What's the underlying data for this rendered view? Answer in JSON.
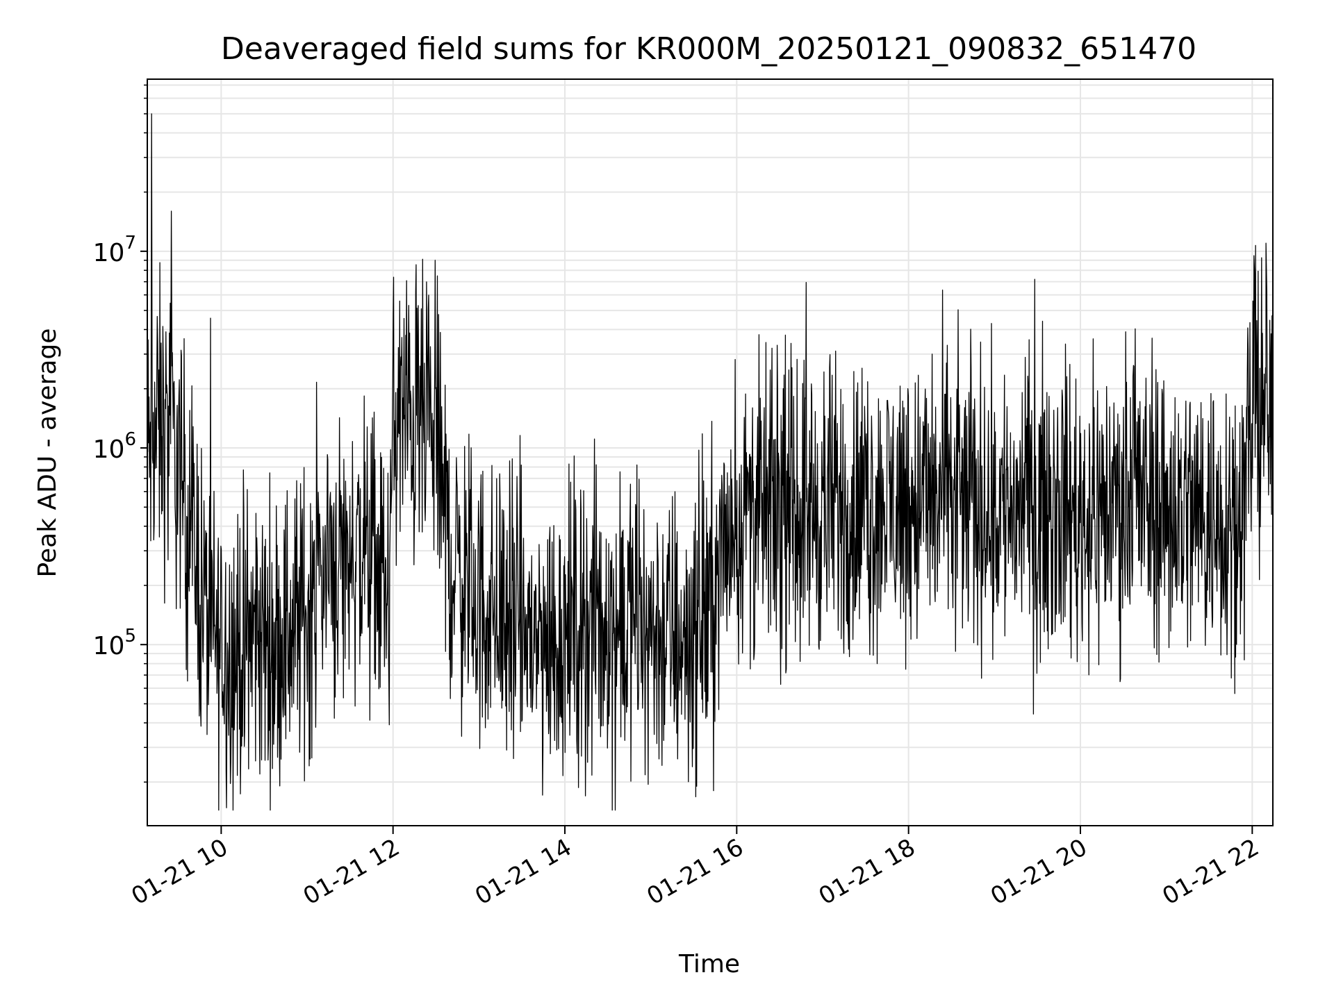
{
  "chart_data": {
    "type": "line",
    "title": "Deaveraged field sums for KR000M_20250121_090832_651470",
    "xlabel": "Time",
    "ylabel": "Peak ADU - average",
    "yscale": "log",
    "grid": true,
    "x_unit": "hours (01-21)",
    "xlim": [
      9.14,
      22.24
    ],
    "ylim": [
      12000,
      75000000
    ],
    "x_ticks": [
      {
        "value": 10,
        "label": "01-21 10"
      },
      {
        "value": 12,
        "label": "01-21 12"
      },
      {
        "value": 14,
        "label": "01-21 14"
      },
      {
        "value": 16,
        "label": "01-21 16"
      },
      {
        "value": 18,
        "label": "01-21 18"
      },
      {
        "value": 20,
        "label": "01-21 20"
      },
      {
        "value": 22,
        "label": "01-21 22"
      }
    ],
    "y_ticks": [
      {
        "value": 100000,
        "base": "10",
        "exp": "5"
      },
      {
        "value": 1000000,
        "base": "10",
        "exp": "6"
      },
      {
        "value": 10000000,
        "base": "10",
        "exp": "7"
      }
    ],
    "line_color": "#000000",
    "grid_color": "#e6e6e6",
    "series": [
      {
        "x": [
          9.14,
          9.2,
          9.25,
          9.3,
          9.35,
          9.4,
          9.45,
          9.5,
          9.55,
          9.6,
          9.65,
          9.7,
          9.75,
          9.8,
          9.85,
          9.9,
          9.95,
          10.0,
          10.2,
          10.4,
          10.6,
          10.8,
          11.0,
          11.2,
          11.4,
          11.6,
          11.8,
          11.95,
          12.0,
          12.1,
          12.2,
          12.3,
          12.4,
          12.5,
          12.55,
          12.6,
          12.7,
          12.8,
          12.9,
          13.0,
          13.2,
          13.4,
          13.6,
          13.8,
          14.0,
          14.2,
          14.4,
          14.6,
          14.8,
          15.0,
          15.2,
          15.4,
          15.6,
          15.8,
          15.9,
          16.0,
          16.5,
          17.0,
          17.5,
          18.0,
          18.5,
          19.0,
          19.5,
          19.8,
          19.9,
          20.0,
          20.5,
          21.0,
          21.5,
          21.8,
          21.9,
          22.0,
          22.1,
          22.24
        ],
        "y": [
          900000,
          1100000,
          1200000,
          1300000,
          1100000,
          1200000,
          1000000,
          800000,
          650000,
          500000,
          380000,
          300000,
          220000,
          160000,
          130000,
          110000,
          100000,
          100000,
          90000,
          110000,
          100000,
          120000,
          150000,
          260000,
          270000,
          300000,
          250000,
          180000,
          1200000,
          1500000,
          1400000,
          1300000,
          1200000,
          1000000,
          800000,
          400000,
          250000,
          220000,
          200000,
          160000,
          150000,
          130000,
          110000,
          100000,
          120000,
          130000,
          130000,
          120000,
          130000,
          120000,
          110000,
          110000,
          130000,
          220000,
          380000,
          450000,
          480000,
          500000,
          480000,
          550000,
          550000,
          500000,
          520000,
          550000,
          480000,
          450000,
          550000,
          500000,
          450000,
          480000,
          550000,
          1500000,
          1600000,
          1500000
        ]
      }
    ],
    "spikes": [
      {
        "x": 9.19,
        "y": 50000000
      },
      {
        "x": 9.42,
        "y": 16000000
      },
      {
        "x": 12.49,
        "y": 9000000
      },
      {
        "x": 22.02,
        "y": 9500000
      },
      {
        "x": 22.16,
        "y": 11000000
      }
    ]
  }
}
